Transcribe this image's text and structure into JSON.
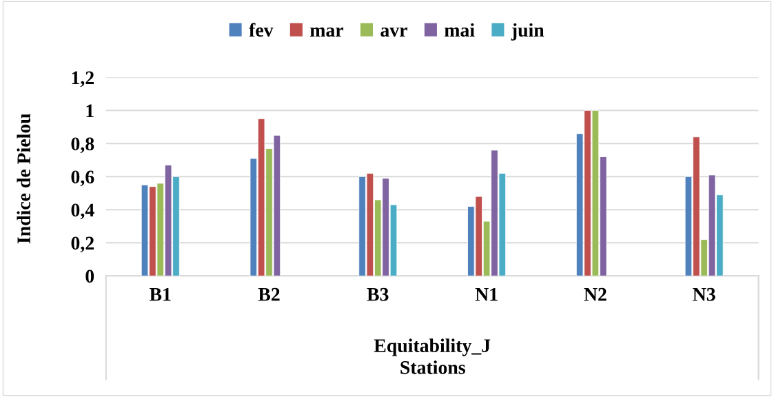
{
  "chart_data": {
    "type": "bar",
    "categories": [
      "B1",
      "B2",
      "B3",
      "N1",
      "N2",
      "N3"
    ],
    "series": [
      {
        "name": "fev",
        "color": "#4f81bd",
        "values": [
          0.55,
          0.71,
          0.6,
          0.42,
          0.86,
          0.6
        ]
      },
      {
        "name": "mar",
        "color": "#c0504d",
        "values": [
          0.54,
          0.95,
          0.62,
          0.48,
          1.0,
          0.84
        ]
      },
      {
        "name": "avr",
        "color": "#9bbb59",
        "values": [
          0.56,
          0.77,
          0.46,
          0.33,
          1.0,
          0.22
        ]
      },
      {
        "name": "mai",
        "color": "#8064a2",
        "values": [
          0.67,
          0.85,
          0.59,
          0.76,
          0.72,
          0.61
        ]
      },
      {
        "name": "juin",
        "color": "#4bacc6",
        "values": [
          0.6,
          null,
          0.43,
          0.62,
          null,
          0.49
        ]
      }
    ],
    "ylabel": "Indice de Pielou",
    "xlabel": "Stations",
    "annotations": [
      "Equitability_J"
    ],
    "ylim": [
      0,
      1.2
    ],
    "yticks": [
      0,
      {
        "value": 0.2,
        "label": "0,2"
      },
      {
        "value": 0.4,
        "label": "0,4"
      },
      {
        "value": 0.6,
        "label": "0,6"
      },
      {
        "value": 0.8,
        "label": "0,8"
      },
      1,
      {
        "value": 1.2,
        "label": "1,2"
      }
    ],
    "grid": "y",
    "legend": "top"
  }
}
